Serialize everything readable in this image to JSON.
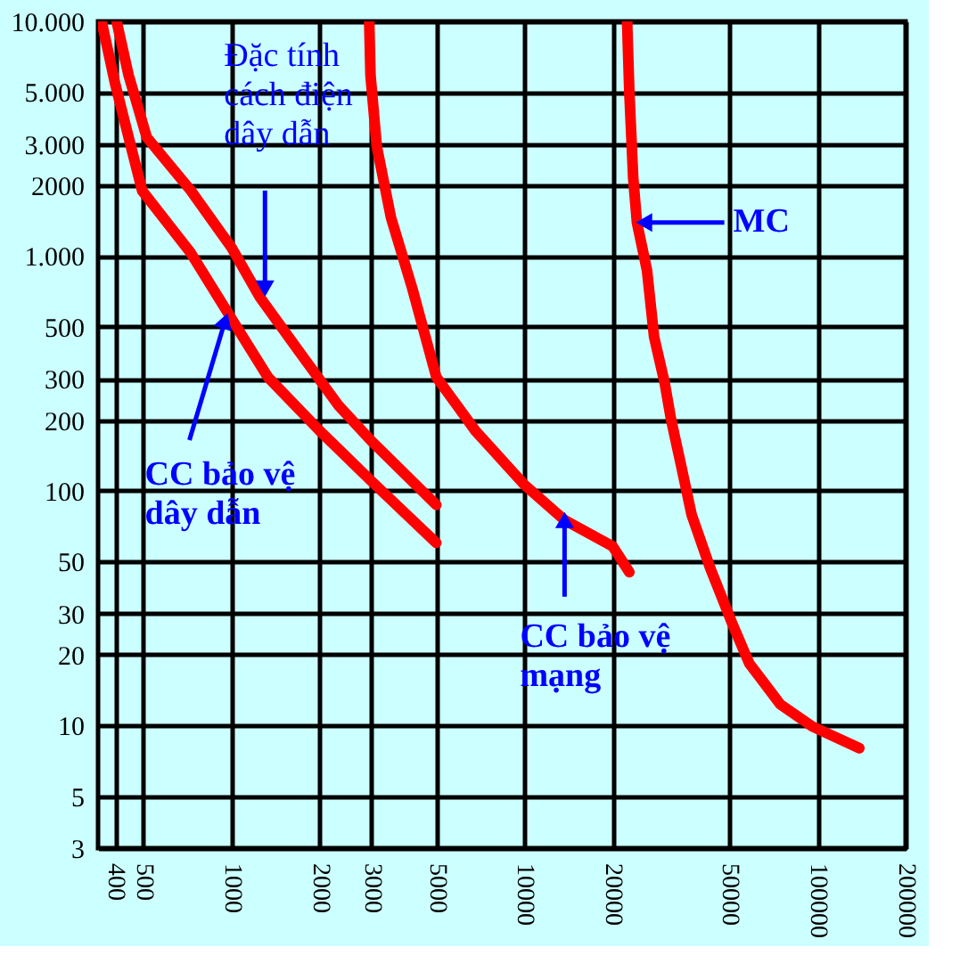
{
  "chart_data": {
    "type": "line",
    "log": "xy",
    "xlim": [
      350,
      200000
    ],
    "xticks": [
      400,
      500,
      1000,
      2000,
      3000,
      5000,
      10000,
      20000,
      50000,
      100000,
      200000
    ],
    "ylim": [
      3,
      10000
    ],
    "yticks": [
      {
        "value": 10000,
        "label": "10.000"
      },
      {
        "value": 5000,
        "label": "5.000"
      },
      {
        "value": 3000,
        "label": "3.000"
      },
      2000,
      {
        "value": 1000,
        "label": "1.000"
      },
      500,
      300,
      200,
      100,
      50,
      30,
      20,
      10,
      5,
      3
    ],
    "grid": true,
    "line_style": "solid",
    "marker": "none",
    "series": [
      {
        "color": "#ff0000",
        "x": [
          360,
          400,
          445,
          495,
          726,
          1000,
          1330,
          2000,
          3000,
          5000
        ],
        "values": [
          10000,
          5450,
          3210,
          1900,
          1030,
          540,
          305,
          180,
          110,
          60
        ]
      },
      {
        "color": "#ff0000",
        "x": [
          405,
          445,
          513,
          726,
          1000,
          1250,
          1700,
          2310,
          3000,
          5000
        ],
        "values": [
          10000,
          5900,
          3210,
          1900,
          1085,
          667,
          392,
          232,
          163,
          87
        ]
      },
      {
        "color": "#ff0000",
        "x": [
          2950,
          2980,
          3130,
          3500,
          4140,
          5000,
          6800,
          10000,
          13700,
          20000,
          22800
        ],
        "values": [
          10000,
          5900,
          2940,
          1460,
          727,
          305,
          180,
          106,
          75,
          58,
          45
        ]
      },
      {
        "color": "#ff0000",
        "x": [
          22400,
          22800,
          23500,
          24200,
          26200,
          27700,
          30100,
          31600,
          34300,
          37200,
          43000,
          51000,
          58500,
          74700,
          96000,
          139000
        ],
        "values": [
          10000,
          4970,
          2150,
          1390,
          867,
          452,
          288,
          203,
          127,
          79,
          47,
          27.5,
          18.4,
          12.3,
          9.9,
          8
        ]
      }
    ],
    "annotations": [
      {
        "text": "Đặc tính\ncách điện\ndây dẫn",
        "x": 1300,
        "y": 727
      },
      {
        "text": "CC bảo vệ\ndây dẫn",
        "x": 950,
        "y": 530
      },
      {
        "text": "MC",
        "x": 25600,
        "y": 1390
      },
      {
        "text": "CC bảo vệ\nmạng",
        "x": 13700,
        "y": 75
      }
    ]
  }
}
